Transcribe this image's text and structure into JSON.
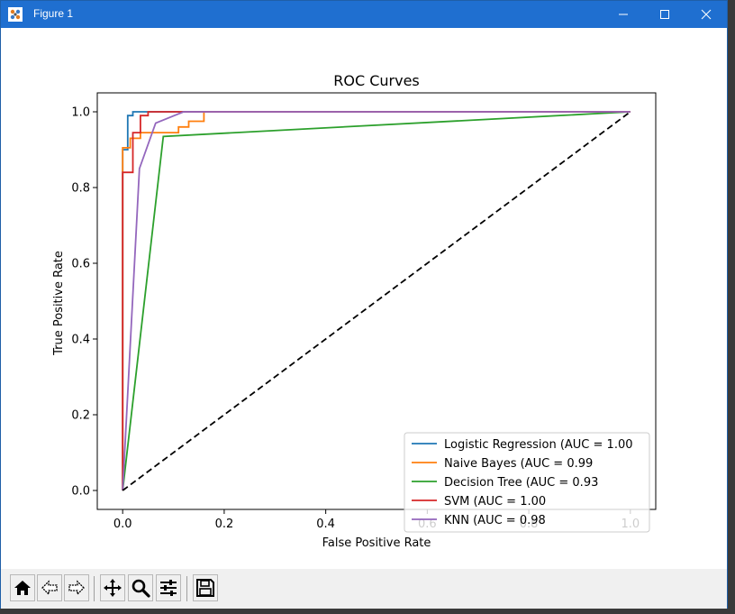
{
  "window": {
    "title": "Figure 1"
  },
  "toolbar": {
    "buttons": [
      {
        "name": "home-button",
        "icon": "home-icon"
      },
      {
        "name": "back-button",
        "icon": "back-arrow-icon"
      },
      {
        "name": "forward-button",
        "icon": "forward-arrow-icon"
      },
      {
        "name": "pan-button",
        "icon": "move-icon"
      },
      {
        "name": "zoom-button",
        "icon": "magnifier-icon"
      },
      {
        "name": "configure-subplots-button",
        "icon": "sliders-icon"
      },
      {
        "name": "save-button",
        "icon": "floppy-disk-icon"
      }
    ]
  },
  "chart_data": {
    "type": "line",
    "title": "ROC Curves",
    "xlabel": "False Positive Rate",
    "ylabel": "True Positive Rate",
    "xlim": [
      -0.05,
      1.05
    ],
    "ylim": [
      -0.05,
      1.05
    ],
    "xticks": [
      "0.0",
      "0.2",
      "0.4",
      "0.6",
      "0.8",
      "1.0"
    ],
    "yticks": [
      "0.0",
      "0.2",
      "0.4",
      "0.6",
      "0.8",
      "1.0"
    ],
    "grid": false,
    "legend_position": "lower right",
    "series": [
      {
        "name": "Logistic Regression (AUC = 1.00",
        "color": "#1f77b4",
        "x": [
          0,
          0,
          0.01,
          0.01,
          0.02,
          0.02,
          0.03,
          1.0
        ],
        "y": [
          0,
          0.9,
          0.9,
          0.99,
          0.99,
          1.0,
          1.0,
          1.0
        ]
      },
      {
        "name": "Naive Bayes (AUC = 0.99",
        "color": "#ff7f0e",
        "x": [
          0,
          0,
          0.015,
          0.015,
          0.035,
          0.035,
          0.08,
          0.08,
          0.11,
          0.11,
          0.13,
          0.13,
          0.16,
          0.16,
          1.0
        ],
        "y": [
          0,
          0.905,
          0.905,
          0.93,
          0.93,
          0.945,
          0.945,
          0.945,
          0.945,
          0.96,
          0.96,
          0.975,
          0.975,
          1.0,
          1.0
        ]
      },
      {
        "name": "Decision Tree (AUC = 0.93",
        "color": "#2ca02c",
        "x": [
          0,
          0.08,
          1.0
        ],
        "y": [
          0,
          0.935,
          1.0
        ]
      },
      {
        "name": "SVM (AUC = 1.00",
        "color": "#d62728",
        "x": [
          0,
          0,
          0.02,
          0.02,
          0.035,
          0.035,
          0.05,
          0.05,
          1.0
        ],
        "y": [
          0,
          0.84,
          0.84,
          0.945,
          0.945,
          0.99,
          0.99,
          1.0,
          1.0
        ]
      },
      {
        "name": "KNN (AUC = 0.98",
        "color": "#9467bd",
        "x": [
          0,
          0.033,
          0.065,
          0.12,
          1.0
        ],
        "y": [
          0,
          0.85,
          0.97,
          1.0,
          1.0
        ]
      },
      {
        "color": "#000000",
        "style": "dashed",
        "x": [
          0,
          1.0
        ],
        "y": [
          0,
          1.0
        ]
      }
    ]
  }
}
